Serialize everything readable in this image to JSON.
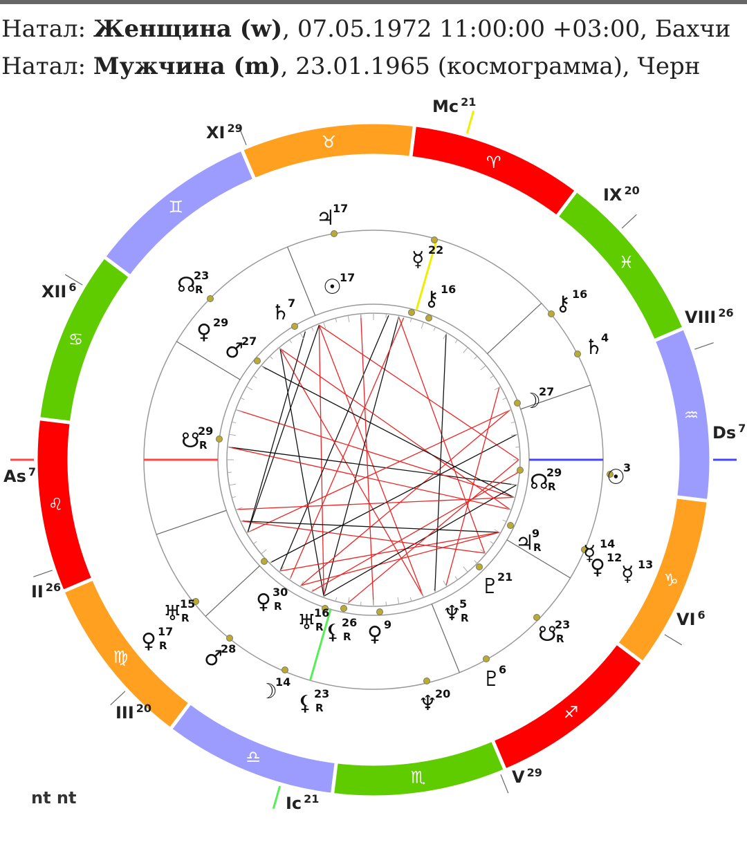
{
  "header": {
    "lines": [
      {
        "prefix": "Натал: ",
        "name": "Женщина (w)",
        "rest": ", 07.05.1972 11:00:00 +03:00, Бахчи"
      },
      {
        "prefix": "Натал: ",
        "name": "Мужчина (m)",
        "rest": ", 23.01.1965 (космограмма), Черн"
      }
    ]
  },
  "zodiac": {
    "signs": [
      "♈",
      "♉",
      "♊",
      "♋",
      "♌",
      "♍",
      "♎",
      "♏",
      "♐",
      "♑",
      "♒",
      "♓"
    ],
    "colors": [
      "#ff0000",
      "#ffa020",
      "#9c9cff",
      "#5fcc00",
      "#ff0000",
      "#ffa020",
      "#9c9cff",
      "#5fcc00",
      "#ff0000",
      "#ffa020",
      "#9c9cff",
      "#5fcc00"
    ]
  },
  "houses": [
    {
      "label": "Mc",
      "degree": 21
    },
    {
      "label": "XI",
      "degree": 29
    },
    {
      "label": "IX",
      "degree": 20
    },
    {
      "label": "XII",
      "degree": 6
    },
    {
      "label": "VIII",
      "degree": 26
    },
    {
      "label": "As",
      "degree": 7
    },
    {
      "label": "Ds",
      "degree": 7
    },
    {
      "label": "II",
      "degree": 26
    },
    {
      "label": "VI",
      "degree": 6
    },
    {
      "label": "III",
      "degree": 20
    },
    {
      "label": "V",
      "degree": 29
    },
    {
      "label": "Ic",
      "degree": 21
    }
  ],
  "planets": [
    {
      "symbol": "♃",
      "degree": 17
    },
    {
      "symbol": "☿",
      "degree": 22
    },
    {
      "symbol": "☉",
      "degree": 17
    },
    {
      "symbol": "⚷",
      "degree": 16
    },
    {
      "symbol": "☊",
      "degree": 23,
      "retro": "R"
    },
    {
      "symbol": "♄",
      "degree": 7
    },
    {
      "symbol": "⚷",
      "degree": 16
    },
    {
      "symbol": "♄",
      "degree": 4
    },
    {
      "symbol": "♀",
      "degree": 29
    },
    {
      "symbol": "♂",
      "degree": 27
    },
    {
      "symbol": "☽",
      "degree": 27
    },
    {
      "symbol": "☋",
      "degree": 29,
      "retro": "R"
    },
    {
      "symbol": "☉",
      "degree": 3
    },
    {
      "symbol": "☊",
      "degree": 29,
      "retro": "R"
    },
    {
      "symbol": "♃",
      "degree": 9,
      "retro": "R"
    },
    {
      "symbol": "☿",
      "degree": 14
    },
    {
      "symbol": "♀",
      "degree": 12
    },
    {
      "symbol": "☿",
      "degree": 13
    },
    {
      "symbol": "♇",
      "degree": 21
    },
    {
      "symbol": "♀",
      "degree": 30,
      "retro": "R"
    },
    {
      "symbol": "♆",
      "degree": 5,
      "retro": "R"
    },
    {
      "symbol": "♅",
      "degree": 15,
      "retro": "R"
    },
    {
      "symbol": "♅",
      "degree": 16,
      "retro": "R"
    },
    {
      "symbol": "⚸",
      "degree": 26,
      "retro": "R"
    },
    {
      "symbol": "♀",
      "degree": 9
    },
    {
      "symbol": "☋",
      "degree": 23,
      "retro": "R"
    },
    {
      "symbol": "♀",
      "degree": 17,
      "retro": "R"
    },
    {
      "symbol": "♂",
      "degree": 28
    },
    {
      "symbol": "☽",
      "degree": 14
    },
    {
      "symbol": "⚸",
      "degree": 23,
      "retro": "R"
    },
    {
      "symbol": "♆",
      "degree": 20
    },
    {
      "symbol": "♇",
      "degree": 6
    }
  ],
  "footer": "nt nt"
}
